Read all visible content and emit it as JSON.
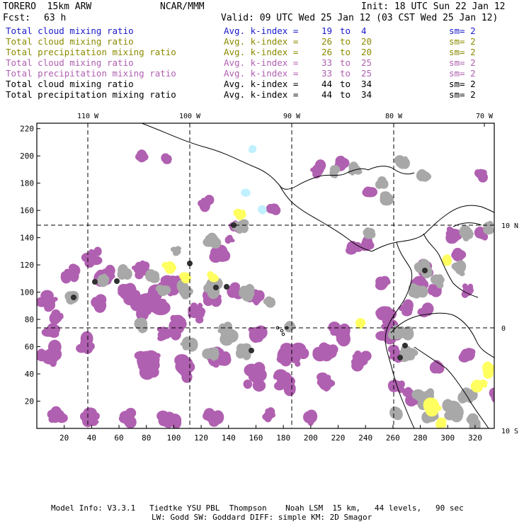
{
  "header": {
    "model": "TORERO  15km ARW",
    "org": "NCAR/MMM",
    "init": "Init: 18 UTC Sun 22 Jan 12",
    "fcst_label": "Fcst:",
    "fcst_value": "63 h",
    "valid": "Valid: 09 UTC Wed 25 Jan 12 (03 CST Wed 25 Jan 12)"
  },
  "legend": [
    {
      "field": "Total cloud mixing ratio",
      "avg": "Avg. k-index =",
      "k1": "19",
      "to": "to",
      "k2": "4",
      "sm": "sm= 2",
      "color": "#1a1acc"
    },
    {
      "field": "Total cloud mixing ratio",
      "avg": "Avg. k-index =",
      "k1": "26",
      "to": "to",
      "k2": "20",
      "sm": "sm= 2",
      "color": "#8a8a00"
    },
    {
      "field": "Total precipitation mixing ratio",
      "avg": "Avg. k-index =",
      "k1": "26",
      "to": "to",
      "k2": "20",
      "sm": "sm= 2",
      "color": "#8a8a00"
    },
    {
      "field": "Total cloud mixing ratio",
      "avg": "Avg. k-index =",
      "k1": "33",
      "to": "to",
      "k2": "25",
      "sm": "sm= 2",
      "color": "#b060b0"
    },
    {
      "field": "Total precipitation mixing ratio",
      "avg": "Avg. k-index =",
      "k1": "33",
      "to": "to",
      "k2": "25",
      "sm": "sm= 2",
      "color": "#b060b0"
    },
    {
      "field": "Total cloud mixing ratio",
      "avg": "Avg. k-index =",
      "k1": "44",
      "to": "to",
      "k2": "34",
      "sm": "sm= 2",
      "color": "#000000"
    },
    {
      "field": "Total precipitation mixing ratio",
      "avg": "Avg. k-index =",
      "k1": "44",
      "to": "to",
      "k2": "34",
      "sm": "sm= 2",
      "color": "#000000"
    }
  ],
  "map": {
    "x_ticks": [
      "20",
      "40",
      "60",
      "80",
      "100",
      "120",
      "140",
      "160",
      "180",
      "200",
      "220",
      "240",
      "260",
      "280",
      "300",
      "320"
    ],
    "y_ticks": [
      "20",
      "40",
      "60",
      "80",
      "100",
      "120",
      "140",
      "160",
      "180",
      "200",
      "220"
    ],
    "lon_labels": [
      "110 W",
      "100 W",
      "90 W",
      "80 W",
      "70 W"
    ],
    "lat_labels": [
      "10 N",
      "0",
      "10 S"
    ],
    "colors": {
      "purple": "#b060b0",
      "gray": "#a8a8a8",
      "dark": "#303030",
      "yellow": "#ffff60",
      "cyan": "#c0f0ff"
    }
  },
  "footer": {
    "line1": "Model Info: V3.3.1   Tiedtke YSU PBL  Thompson    Noah LSM  15 km,   44 levels,   90 sec",
    "line2": "LW: Godd SW: Goddard DIFF: simple KM: 2D Smagor"
  }
}
